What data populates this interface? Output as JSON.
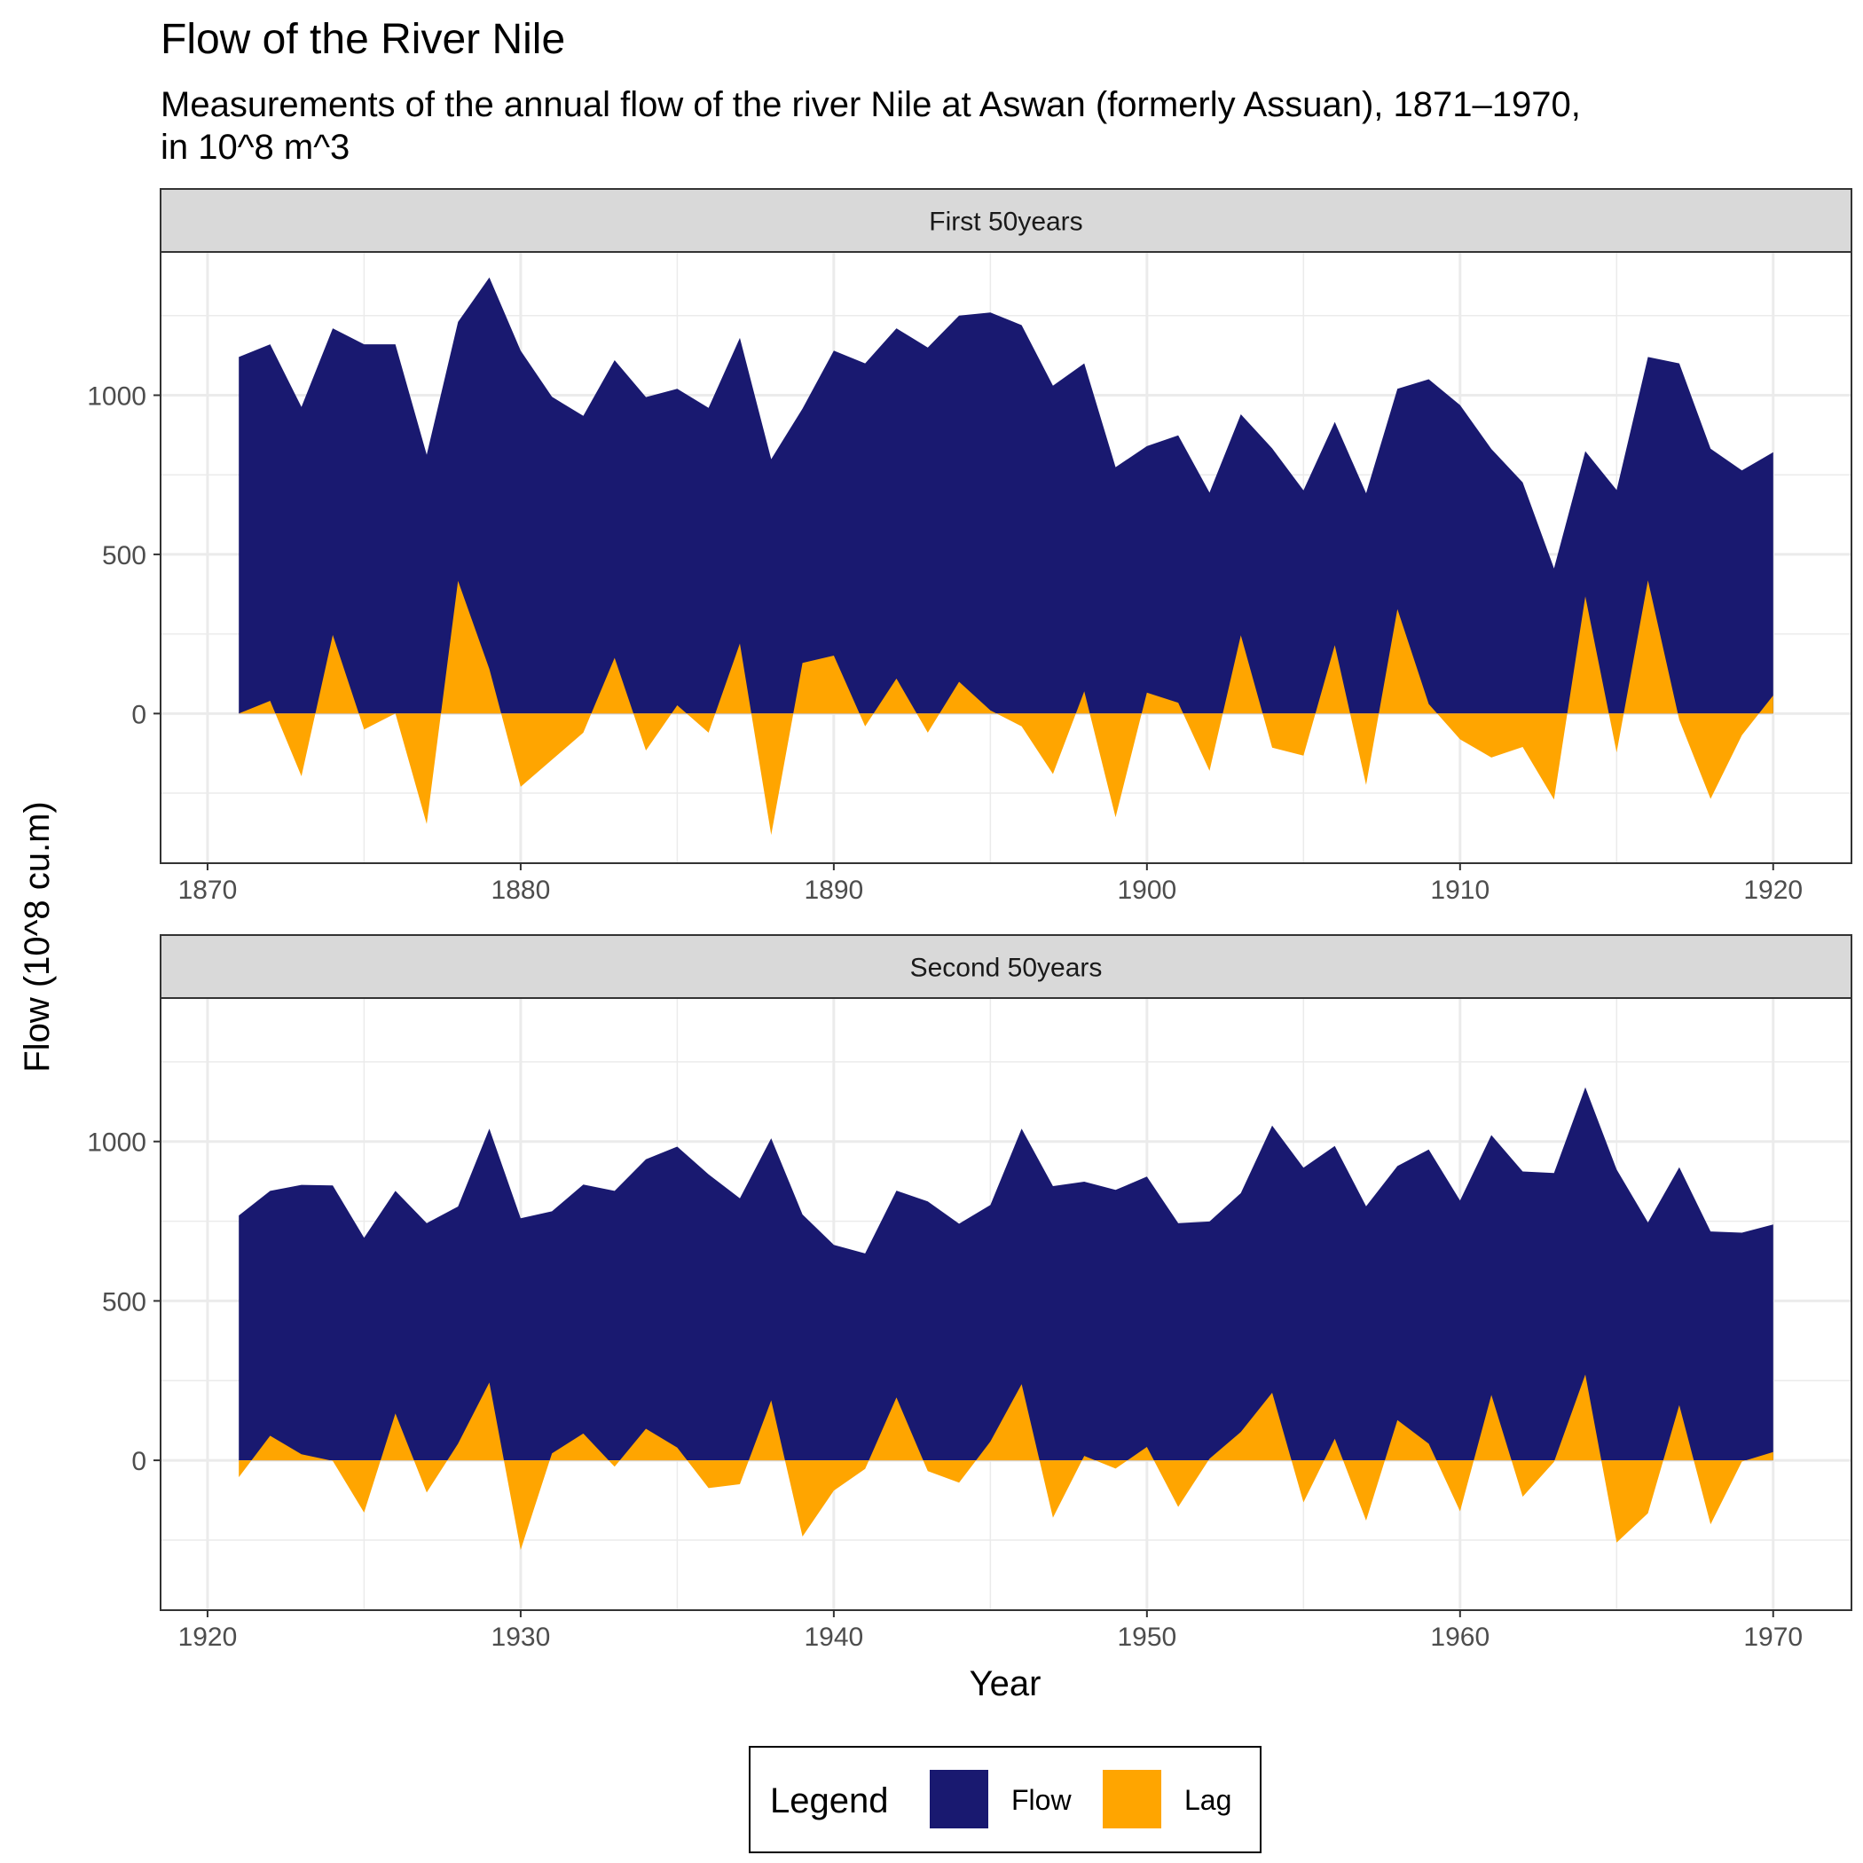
{
  "chart_data": {
    "type": "area",
    "title": "Flow of the River Nile",
    "subtitle_lines": [
      "Measurements of the annual flow of the river Nile at Aswan (formerly Assuan), 1871–1970,",
      "in 10^8 m^3"
    ],
    "xlabel": "Year",
    "ylabel": "Flow (10^8 cu.m)",
    "grid": true,
    "legend": {
      "title": "Legend",
      "placement": "bottom",
      "entries": [
        {
          "name": "Flow",
          "color": "#191970"
        },
        {
          "name": "Lag",
          "color": "#FFA500"
        }
      ]
    },
    "ylim": [
      -470,
      1450
    ],
    "y_ticks": [
      0,
      500,
      1000
    ],
    "panels": [
      {
        "strip": "First 50years",
        "xlim": [
          1868.5,
          1922.5
        ],
        "x_ticks": [
          1870,
          1880,
          1890,
          1900,
          1910,
          1920
        ],
        "x": [
          1871,
          1872,
          1873,
          1874,
          1875,
          1876,
          1877,
          1878,
          1879,
          1880,
          1881,
          1882,
          1883,
          1884,
          1885,
          1886,
          1887,
          1888,
          1889,
          1890,
          1891,
          1892,
          1893,
          1894,
          1895,
          1896,
          1897,
          1898,
          1899,
          1900,
          1901,
          1902,
          1903,
          1904,
          1905,
          1906,
          1907,
          1908,
          1909,
          1910,
          1911,
          1912,
          1913,
          1914,
          1915,
          1916,
          1917,
          1918,
          1919,
          1920
        ],
        "series": [
          {
            "name": "Flow",
            "values": [
              1120,
              1160,
              963,
              1210,
              1160,
              1160,
              813,
              1230,
              1370,
              1140,
              995,
              935,
              1110,
              994,
              1020,
              960,
              1180,
              799,
              958,
              1140,
              1100,
              1210,
              1150,
              1250,
              1260,
              1220,
              1030,
              1100,
              774,
              840,
              874,
              694,
              940,
              833,
              701,
              916,
              692,
              1020,
              1050,
              969,
              831,
              726,
              456,
              824,
              702,
              1120,
              1100,
              832,
              764,
              821
            ]
          },
          {
            "name": "Lag",
            "values": [
              0,
              40,
              -197,
              247,
              -50,
              0,
              -347,
              417,
              140,
              -230,
              -145,
              -60,
              175,
              -116,
              26,
              -60,
              220,
              -381,
              159,
              182,
              -40,
              110,
              -60,
              100,
              10,
              -40,
              -190,
              70,
              -326,
              66,
              34,
              -180,
              246,
              -107,
              -132,
              215,
              -224,
              328,
              30,
              -81,
              -138,
              -105,
              -270,
              368,
              -122,
              418,
              -20,
              -268,
              -68,
              57
            ]
          }
        ]
      },
      {
        "strip": "Second 50years",
        "xlim": [
          1918.5,
          1972.5
        ],
        "x_ticks": [
          1920,
          1930,
          1940,
          1950,
          1960,
          1970
        ],
        "x": [
          1921,
          1922,
          1923,
          1924,
          1925,
          1926,
          1927,
          1928,
          1929,
          1930,
          1931,
          1932,
          1933,
          1934,
          1935,
          1936,
          1937,
          1938,
          1939,
          1940,
          1941,
          1942,
          1943,
          1944,
          1945,
          1946,
          1947,
          1948,
          1949,
          1950,
          1951,
          1952,
          1953,
          1954,
          1955,
          1956,
          1957,
          1958,
          1959,
          1960,
          1961,
          1962,
          1963,
          1964,
          1965,
          1966,
          1967,
          1968,
          1969,
          1970
        ],
        "series": [
          {
            "name": "Flow",
            "values": [
              768,
              845,
              864,
              862,
              698,
              845,
              744,
              796,
              1040,
              759,
              781,
              865,
              845,
              944,
              984,
              897,
              822,
              1010,
              771,
              676,
              649,
              846,
              812,
              742,
              801,
              1040,
              860,
              874,
              848,
              890,
              744,
              749,
              838,
              1050,
              918,
              986,
              797,
              923,
              975,
              815,
              1020,
              906,
              901,
              1170,
              912,
              746,
              919,
              718,
              714,
              740
            ]
          },
          {
            "name": "Lag",
            "values": [
              -53,
              77,
              19,
              -2,
              -164,
              147,
              -101,
              52,
              244,
              -281,
              22,
              84,
              -20,
              99,
              40,
              -87,
              -75,
              188,
              -239,
              -95,
              -27,
              197,
              -34,
              -70,
              59,
              239,
              -180,
              14,
              -26,
              42,
              -146,
              5,
              89,
              212,
              -132,
              68,
              -189,
              126,
              52,
              -160,
              205,
              -114,
              -5,
              269,
              -258,
              -166,
              173,
              -201,
              -4,
              26
            ]
          }
        ]
      }
    ]
  }
}
